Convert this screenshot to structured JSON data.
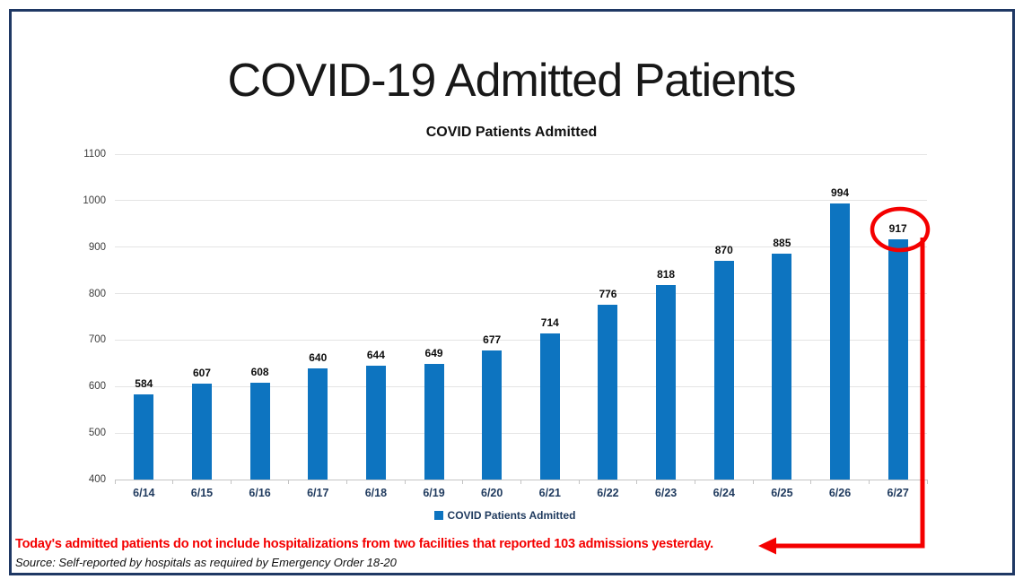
{
  "page": {
    "title": "COVID-19 Admitted Patients",
    "note": "Today's admitted patients do not include hospitalizations from two facilities that reported 103 admissions yesterday.",
    "source": "Source: Self-reported by hospitals as required by Emergency Order 18-20"
  },
  "colors": {
    "bar_blue": "#0d74c0",
    "frame_navy": "#1f3864",
    "annotation_red": "#f40000",
    "note_red": "#f40000",
    "date_label_navy": "#1f3a5e",
    "value_label_black": "#0d0d0d",
    "y_label_gray": "#3d3d3d",
    "gridline_gray": "#e4e4e4",
    "axis_line_gray": "#c4c4c4"
  },
  "chart_data": {
    "type": "bar",
    "title": "COVID Patients Admitted",
    "categories": [
      "6/14",
      "6/15",
      "6/16",
      "6/17",
      "6/18",
      "6/19",
      "6/20",
      "6/21",
      "6/22",
      "6/23",
      "6/24",
      "6/25",
      "6/26",
      "6/27"
    ],
    "values": [
      584,
      607,
      608,
      640,
      644,
      649,
      677,
      714,
      776,
      818,
      870,
      885,
      994,
      917
    ],
    "ylim": [
      400,
      1100
    ],
    "yticks": [
      400,
      500,
      600,
      700,
      800,
      900,
      1000,
      1100
    ],
    "grid": true,
    "bar_labels": true,
    "legend_label": "COVID Patients Admitted",
    "legend_position": "bottom",
    "annotation": {
      "type": "circle-highlight-with-arrow",
      "highlighted_category": "6/27",
      "highlighted_value": 917
    }
  }
}
